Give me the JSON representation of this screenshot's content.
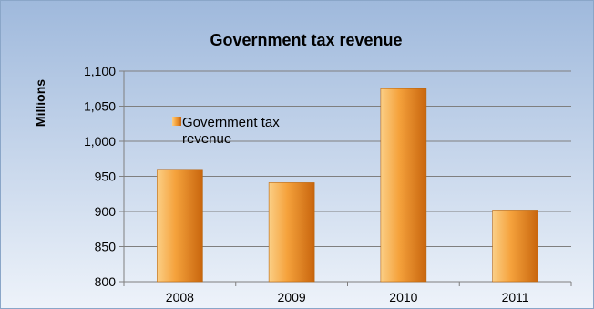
{
  "chart_data": {
    "type": "bar",
    "title": "Government tax revenue",
    "xlabel": "",
    "ylabel": "Millions",
    "categories": [
      "2008",
      "2009",
      "2010",
      "2011"
    ],
    "series": [
      {
        "name": "Government tax revenue",
        "values": [
          960,
          941,
          1075,
          902
        ]
      }
    ],
    "ylim": [
      800,
      1100
    ],
    "yticks": [
      "800",
      "850",
      "900",
      "950",
      "1,000",
      "1,050",
      "1,100"
    ],
    "grid": true,
    "legend_position": "top-left",
    "legend_lines": [
      "Government tax",
      "revenue"
    ],
    "colors": {
      "bar_light": "#fbcf86",
      "bar_mid": "#f5a23c",
      "bar_dark": "#c8650d",
      "background_top": "#9fb9dc",
      "background_bottom": "#eef3fa",
      "gridline": "#7f7f7f"
    }
  }
}
